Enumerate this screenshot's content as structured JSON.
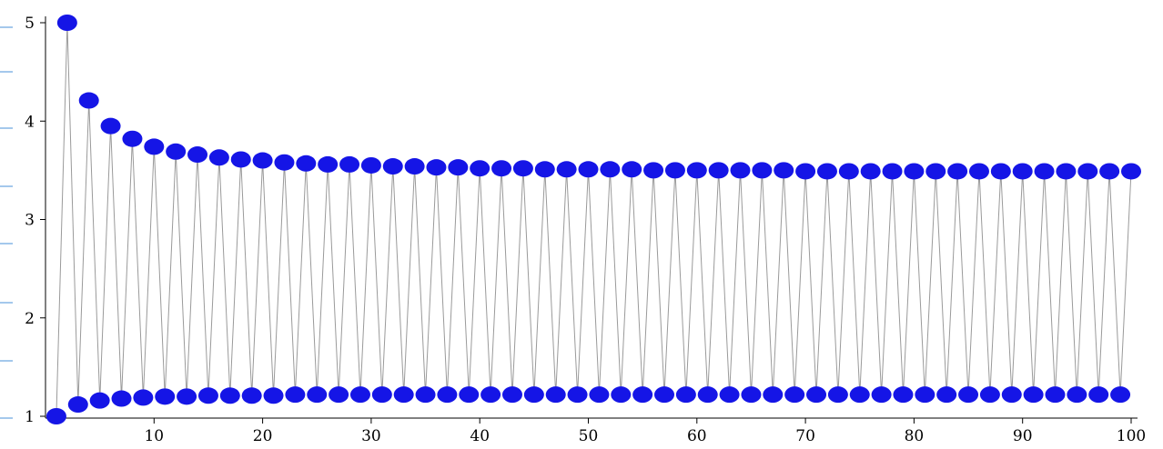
{
  "chart_data": {
    "type": "scatter",
    "title": "",
    "xlabel": "",
    "ylabel": "",
    "xlim": [
      0,
      100
    ],
    "ylim": [
      1,
      5
    ],
    "x_ticks": [
      10,
      20,
      30,
      40,
      50,
      60,
      70,
      80,
      90,
      100
    ],
    "x_tick_labels": [
      "10",
      "20",
      "30",
      "40",
      "50",
      "60",
      "70",
      "80",
      "90",
      "100"
    ],
    "y_ticks": [
      1,
      2,
      3,
      4,
      5
    ],
    "y_tick_labels": [
      "1",
      "2",
      "3",
      "4",
      "5"
    ],
    "grid": false,
    "connected": true,
    "marker_color": "#1515e6",
    "line_color": "#9a9a9a",
    "series": [
      {
        "x": [
          1,
          2,
          3,
          4,
          5,
          6,
          7,
          8,
          9,
          10,
          11,
          12,
          13,
          14,
          15,
          16,
          17,
          18,
          19,
          20,
          21,
          22,
          23,
          24,
          25,
          26,
          27,
          28,
          29,
          30,
          31,
          32,
          33,
          34,
          35,
          36,
          37,
          38,
          39,
          40,
          41,
          42,
          43,
          44,
          45,
          46,
          47,
          48,
          49,
          50,
          51,
          52,
          53,
          54,
          55,
          56,
          57,
          58,
          59,
          60,
          61,
          62,
          63,
          64,
          65,
          66,
          67,
          68,
          69,
          70,
          71,
          72,
          73,
          74,
          75,
          76,
          77,
          78,
          79,
          80,
          81,
          82,
          83,
          84,
          85,
          86,
          87,
          88,
          89,
          90,
          91,
          92,
          93,
          94,
          95,
          96,
          97,
          98,
          99,
          100
        ],
        "y": [
          1.0,
          5.0,
          1.12,
          4.21,
          1.16,
          3.95,
          1.18,
          3.82,
          1.19,
          3.74,
          1.2,
          3.69,
          1.2,
          3.66,
          1.21,
          3.63,
          1.21,
          3.61,
          1.21,
          3.6,
          1.21,
          3.58,
          1.22,
          3.57,
          1.22,
          3.56,
          1.22,
          3.56,
          1.22,
          3.55,
          1.22,
          3.54,
          1.22,
          3.54,
          1.22,
          3.53,
          1.22,
          3.53,
          1.22,
          3.52,
          1.22,
          3.52,
          1.22,
          3.52,
          1.22,
          3.51,
          1.22,
          3.51,
          1.22,
          3.51,
          1.22,
          3.51,
          1.22,
          3.51,
          1.22,
          3.5,
          1.22,
          3.5,
          1.22,
          3.5,
          1.22,
          3.5,
          1.22,
          3.5,
          1.22,
          3.5,
          1.22,
          3.5,
          1.22,
          3.49,
          1.22,
          3.49,
          1.22,
          3.49,
          1.22,
          3.49,
          1.22,
          3.49,
          1.22,
          3.49,
          1.22,
          3.49,
          1.22,
          3.49,
          1.22,
          3.49,
          1.22,
          3.49,
          1.22,
          3.49,
          1.22,
          3.49,
          1.22,
          3.49,
          1.22,
          3.49,
          1.22,
          3.49,
          1.22,
          3.49
        ]
      }
    ]
  }
}
